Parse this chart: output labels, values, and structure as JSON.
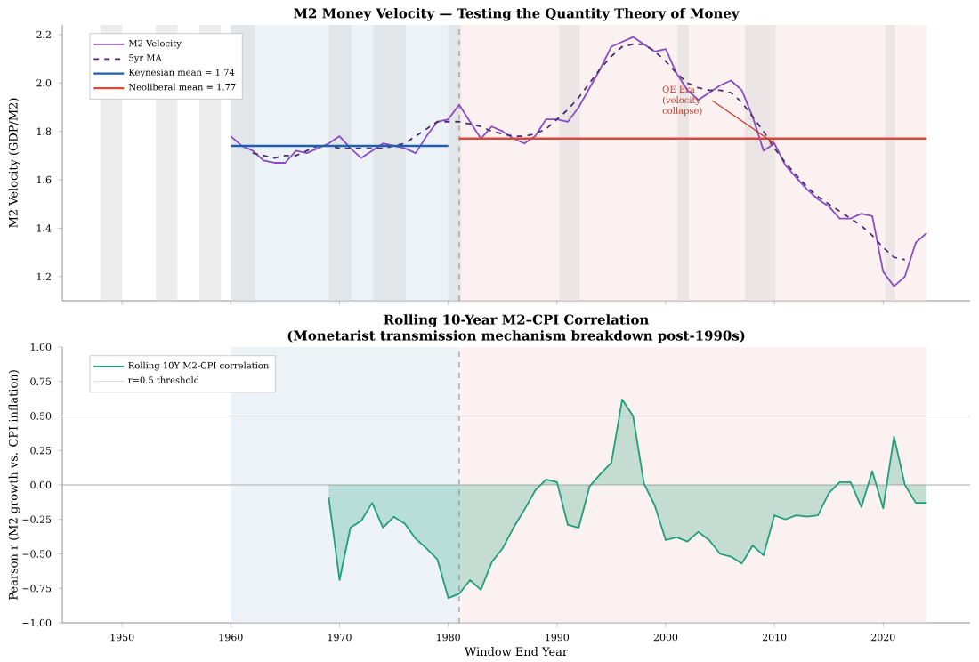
{
  "chart_data": [
    {
      "type": "line",
      "title": "M2 Money Velocity — Testing the Quantity Theory of Money",
      "ylabel": "M2 Velocity (GDP/M2)",
      "xlim": [
        1944.5,
        2028
      ],
      "ylim": [
        1.1,
        2.24
      ],
      "xticks": [
        1950,
        1960,
        1970,
        1980,
        1990,
        2000,
        2010,
        2020
      ],
      "yticks": [
        1.2,
        1.4,
        1.6,
        1.8,
        {
          "value": 2,
          "label": "2.0"
        },
        2.2
      ],
      "tick_labels": "y",
      "legend": "top left",
      "marker": "none",
      "x": [
        1960,
        1961,
        1962,
        1963,
        1964,
        1965,
        1966,
        1967,
        1968,
        1969,
        1970,
        1971,
        1972,
        1973,
        1974,
        1975,
        1976,
        1977,
        1978,
        1979,
        1980,
        1981,
        1982,
        1983,
        1984,
        1985,
        1986,
        1987,
        1988,
        1989,
        1990,
        1991,
        1992,
        1993,
        1994,
        1995,
        1996,
        1997,
        1998,
        1999,
        2000,
        2001,
        2002,
        2003,
        2004,
        2005,
        2006,
        2007,
        2008,
        2009,
        2010,
        2011,
        2012,
        2013,
        2014,
        2015,
        2016,
        2017,
        2018,
        2019,
        2020,
        2021,
        2022,
        2023,
        2024
      ],
      "series": [
        {
          "name": "M2 Velocity",
          "color": "#8a4cc4",
          "values": [
            1.78,
            1.74,
            1.72,
            1.68,
            1.67,
            1.67,
            1.72,
            1.71,
            1.73,
            1.75,
            1.78,
            1.73,
            1.69,
            1.72,
            1.75,
            1.74,
            1.73,
            1.71,
            1.78,
            1.84,
            1.85,
            1.91,
            1.84,
            1.77,
            1.82,
            1.8,
            1.77,
            1.75,
            1.78,
            1.85,
            1.85,
            1.84,
            1.9,
            1.98,
            2.06,
            2.15,
            2.17,
            2.19,
            2.16,
            2.13,
            2.14,
            2.04,
            1.97,
            1.93,
            1.96,
            1.99,
            2.01,
            1.97,
            1.86,
            1.72,
            1.75,
            1.66,
            1.61,
            1.56,
            1.52,
            1.49,
            1.44,
            1.44,
            1.46,
            1.45,
            1.22,
            1.16,
            1.2,
            1.34,
            1.38
          ]
        },
        {
          "name": "5yr MA",
          "color": "#4b2d6e",
          "line_style": "dashed",
          "x": [
            1962,
            1963,
            1964,
            1965,
            1966,
            1967,
            1968,
            1969,
            1970,
            1971,
            1972,
            1973,
            1974,
            1975,
            1976,
            1977,
            1978,
            1979,
            1980,
            1981,
            1982,
            1983,
            1984,
            1985,
            1986,
            1987,
            1988,
            1989,
            1990,
            1991,
            1992,
            1993,
            1994,
            1995,
            1996,
            1997,
            1998,
            1999,
            2000,
            2001,
            2002,
            2003,
            2004,
            2005,
            2006,
            2007,
            2008,
            2009,
            2010,
            2011,
            2012,
            2013,
            2014,
            2015,
            2016,
            2017,
            2018,
            2019,
            2020,
            2021,
            2022
          ],
          "values": [
            1.71,
            1.7,
            1.69,
            1.7,
            1.7,
            1.72,
            1.74,
            1.74,
            1.73,
            1.73,
            1.73,
            1.73,
            1.73,
            1.74,
            1.75,
            1.78,
            1.81,
            1.84,
            1.84,
            1.84,
            1.83,
            1.82,
            1.8,
            1.79,
            1.78,
            1.78,
            1.79,
            1.81,
            1.85,
            1.89,
            1.94,
            2.0,
            2.06,
            2.11,
            2.15,
            2.16,
            2.16,
            2.13,
            2.09,
            2.04,
            2.0,
            1.98,
            1.97,
            1.97,
            1.96,
            1.92,
            1.86,
            1.8,
            1.73,
            1.67,
            1.62,
            1.57,
            1.53,
            1.5,
            1.47,
            1.44,
            1.41,
            1.37,
            1.32,
            1.28,
            1.27
          ]
        },
        {
          "name": "Keynesian mean = 1.74",
          "color": "#1f5fad",
          "x": [
            1960,
            1980
          ],
          "values": [
            1.74,
            1.74
          ]
        },
        {
          "name": "Neoliberal mean = 1.77",
          "color": "#d9483b",
          "x": [
            1981,
            2024
          ],
          "values": [
            1.77,
            1.77
          ]
        }
      ],
      "bands": [
        {
          "axis": "x",
          "from": 1960,
          "to": 1981,
          "color": "#dbe5ef"
        },
        {
          "axis": "x",
          "from": 1981,
          "to": 2024,
          "color": "#f9e3e3"
        },
        {
          "axis": "x",
          "from": 1948,
          "to": 1950,
          "color": "#d9d9d9"
        },
        {
          "axis": "x",
          "from": 1953.1,
          "to": 1955.1,
          "color": "#d9d9d9"
        },
        {
          "axis": "x",
          "from": 1957.1,
          "to": 1959.1,
          "color": "#d9d9d9"
        },
        {
          "axis": "x",
          "from": 1960,
          "to": 1962.2,
          "color": "#d9d9d9"
        },
        {
          "axis": "x",
          "from": 1969,
          "to": 1971.1,
          "color": "#d9d9d9"
        },
        {
          "axis": "x",
          "from": 1973.1,
          "to": 1976.1,
          "color": "#d9d9d9"
        },
        {
          "axis": "x",
          "from": 1980,
          "to": 1981.2,
          "color": "#d9d9d9"
        },
        {
          "axis": "x",
          "from": 1990.2,
          "to": 1992.1,
          "color": "#d9d9d9"
        },
        {
          "axis": "x",
          "from": 2001.1,
          "to": 2002.1,
          "color": "#d9d9d9"
        },
        {
          "axis": "x",
          "from": 2007.3,
          "to": 2010.1,
          "color": "#d9d9d9"
        },
        {
          "axis": "x",
          "from": 2020.2,
          "to": 2021.1,
          "color": "#d9d9d9"
        }
      ],
      "ref_lines": [
        {
          "axis": "x",
          "value": 1981,
          "color": "#999999",
          "line_style": "dashed"
        }
      ],
      "annotations": [
        {
          "text": "QE Era (velocity collapse)",
          "x": 2010,
          "y": 1.75
        }
      ]
    },
    {
      "type": "line",
      "title": "Rolling 10-Year M2–CPI Correlation",
      "subtitle": "(Monetarist transmission mechanism breakdown post-1990s)",
      "xlabel": "Window End Year",
      "ylabel": "Pearson r (M2 growth vs. CPI inflation)",
      "xlim": [
        1944.5,
        2028
      ],
      "ylim": [
        -1,
        1
      ],
      "xticks": [
        1950,
        1960,
        1970,
        1980,
        1990,
        2000,
        2010,
        2020
      ],
      "yticks": [
        {
          "value": -1,
          "label": "−1.00"
        },
        {
          "value": -0.75,
          "label": "−0.75"
        },
        {
          "value": -0.5,
          "label": "−0.50"
        },
        {
          "value": -0.25,
          "label": "−0.25"
        },
        {
          "value": 0,
          "label": "0.00"
        },
        {
          "value": 0.25,
          "label": "0.25"
        },
        {
          "value": 0.5,
          "label": "0.50"
        },
        {
          "value": 0.75,
          "label": "0.75"
        },
        {
          "value": 1,
          "label": "1.00"
        }
      ],
      "legend": "top left",
      "marker": "none",
      "x": [
        1969,
        1970,
        1971,
        1972,
        1973,
        1974,
        1975,
        1976,
        1977,
        1978,
        1979,
        1980,
        1981,
        1982,
        1983,
        1984,
        1985,
        1986,
        1987,
        1988,
        1989,
        1990,
        1991,
        1992,
        1993,
        1994,
        1995,
        1996,
        1997,
        1998,
        1999,
        2000,
        2001,
        2002,
        2003,
        2004,
        2005,
        2006,
        2007,
        2008,
        2009,
        2010,
        2011,
        2012,
        2013,
        2014,
        2015,
        2016,
        2017,
        2018,
        2019,
        2020,
        2021,
        2022,
        2023,
        2024
      ],
      "series": [
        {
          "name": "Rolling 10Y M2-CPI correlation",
          "type": "area",
          "color": "#1f9e7a",
          "values": [
            -0.09,
            -0.69,
            -0.31,
            -0.26,
            -0.13,
            -0.31,
            -0.23,
            -0.28,
            -0.39,
            -0.46,
            -0.54,
            -0.82,
            -0.79,
            -0.69,
            -0.76,
            -0.56,
            -0.46,
            -0.31,
            -0.18,
            -0.04,
            0.04,
            0.02,
            -0.29,
            -0.31,
            -0.01,
            0.08,
            0.16,
            0.62,
            0.5,
            0.01,
            -0.15,
            -0.4,
            -0.38,
            -0.41,
            -0.34,
            -0.4,
            -0.5,
            -0.52,
            -0.57,
            -0.44,
            -0.51,
            -0.22,
            -0.25,
            -0.22,
            -0.23,
            -0.22,
            -0.06,
            0.02,
            0.02,
            -0.16,
            0.1,
            -0.17,
            0.35,
            0.0,
            -0.13,
            -0.13
          ]
        }
      ],
      "bands": [
        {
          "axis": "x",
          "from": 1960,
          "to": 1981,
          "color": "#dbe5ef"
        },
        {
          "axis": "x",
          "from": 1981,
          "to": 2024,
          "color": "#f9e3e3"
        }
      ],
      "ref_lines": [
        {
          "axis": "x",
          "value": 1981,
          "color": "#999999",
          "line_style": "dashed"
        },
        {
          "axis": "y",
          "value": 0,
          "color": "#aaaaaa"
        },
        {
          "axis": "y",
          "value": 0.5,
          "color": "#dddddd",
          "label": "r=0.5 threshold"
        }
      ]
    }
  ]
}
